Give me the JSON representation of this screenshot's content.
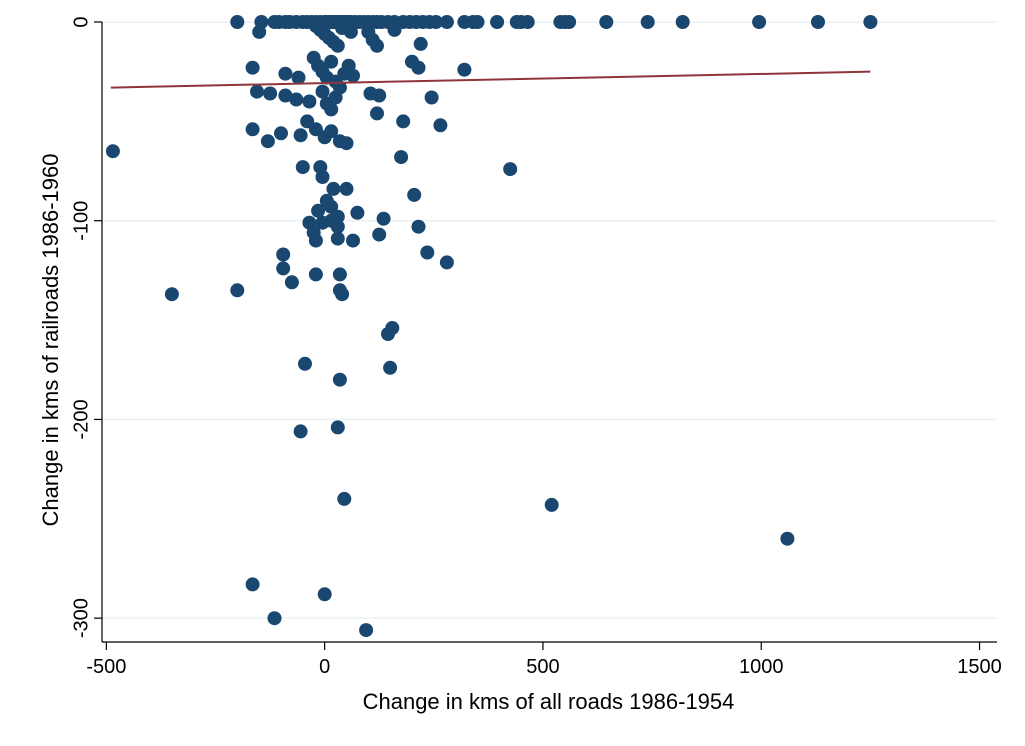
{
  "chart_data": {
    "type": "scatter",
    "xlabel": "Change in kms of all roads 1986-1954",
    "ylabel": "Change in kms of railroads 1986-1960",
    "xlim": [
      -510,
      1540
    ],
    "ylim": [
      -312,
      0
    ],
    "x_ticks": [
      {
        "value": -500,
        "label": "-500"
      },
      {
        "value": 0,
        "label": "0"
      },
      {
        "value": 500,
        "label": "500"
      },
      {
        "value": 1000,
        "label": "1000"
      },
      {
        "value": 1500,
        "label": "1500"
      }
    ],
    "y_ticks": [
      {
        "value": 0,
        "label": "0"
      },
      {
        "value": -100,
        "label": "-100"
      },
      {
        "value": -200,
        "label": "-200"
      },
      {
        "value": -300,
        "label": "-300"
      }
    ],
    "grid": "horizontal",
    "marker_color": "#1a476f",
    "fit_line": {
      "x": [
        -490,
        1250
      ],
      "y": [
        -33,
        -25
      ],
      "color": "#90353b"
    },
    "points": [
      [
        -200,
        0
      ],
      [
        -145,
        0
      ],
      [
        -115,
        0
      ],
      [
        -105,
        0
      ],
      [
        -90,
        0
      ],
      [
        -80,
        0
      ],
      [
        -65,
        0
      ],
      [
        -50,
        0
      ],
      [
        -40,
        0
      ],
      [
        -30,
        0
      ],
      [
        -20,
        0
      ],
      [
        -10,
        0
      ],
      [
        0,
        0
      ],
      [
        5,
        0
      ],
      [
        10,
        0
      ],
      [
        15,
        0
      ],
      [
        20,
        0
      ],
      [
        25,
        0
      ],
      [
        30,
        0
      ],
      [
        35,
        0
      ],
      [
        40,
        0
      ],
      [
        45,
        0
      ],
      [
        50,
        0
      ],
      [
        55,
        0
      ],
      [
        60,
        0
      ],
      [
        70,
        0
      ],
      [
        80,
        0
      ],
      [
        90,
        0
      ],
      [
        100,
        0
      ],
      [
        110,
        0
      ],
      [
        120,
        0
      ],
      [
        130,
        0
      ],
      [
        145,
        0
      ],
      [
        160,
        0
      ],
      [
        180,
        0
      ],
      [
        195,
        0
      ],
      [
        210,
        0
      ],
      [
        225,
        0
      ],
      [
        240,
        0
      ],
      [
        255,
        0
      ],
      [
        280,
        0
      ],
      [
        320,
        0
      ],
      [
        340,
        0
      ],
      [
        350,
        0
      ],
      [
        395,
        0
      ],
      [
        440,
        0
      ],
      [
        450,
        0
      ],
      [
        465,
        0
      ],
      [
        540,
        0
      ],
      [
        550,
        0
      ],
      [
        560,
        0
      ],
      [
        645,
        0
      ],
      [
        740,
        0
      ],
      [
        820,
        0
      ],
      [
        995,
        0
      ],
      [
        1130,
        0
      ],
      [
        1250,
        0
      ],
      [
        -150,
        -5
      ],
      [
        -20,
        -2
      ],
      [
        -10,
        -4
      ],
      [
        0,
        -6
      ],
      [
        10,
        -8
      ],
      [
        20,
        -10
      ],
      [
        30,
        -12
      ],
      [
        40,
        -3
      ],
      [
        60,
        -5
      ],
      [
        100,
        -5
      ],
      [
        110,
        -9
      ],
      [
        120,
        -12
      ],
      [
        160,
        -4
      ],
      [
        220,
        -11
      ],
      [
        -25,
        -18
      ],
      [
        -15,
        -22
      ],
      [
        -5,
        -25
      ],
      [
        5,
        -28
      ],
      [
        15,
        -20
      ],
      [
        25,
        -30
      ],
      [
        35,
        -33
      ],
      [
        45,
        -26
      ],
      [
        55,
        -22
      ],
      [
        65,
        -27
      ],
      [
        -90,
        -26
      ],
      [
        -60,
        -28
      ],
      [
        -165,
        -23
      ],
      [
        200,
        -20
      ],
      [
        215,
        -23
      ],
      [
        320,
        -24
      ],
      [
        -155,
        -35
      ],
      [
        -125,
        -36
      ],
      [
        -90,
        -37
      ],
      [
        -65,
        -39
      ],
      [
        -35,
        -40
      ],
      [
        -5,
        -35
      ],
      [
        5,
        -41
      ],
      [
        15,
        -44
      ],
      [
        25,
        -38
      ],
      [
        105,
        -36
      ],
      [
        125,
        -37
      ],
      [
        245,
        -38
      ],
      [
        -40,
        -50
      ],
      [
        -55,
        -57
      ],
      [
        -20,
        -54
      ],
      [
        0,
        -58
      ],
      [
        15,
        -55
      ],
      [
        35,
        -60
      ],
      [
        50,
        -61
      ],
      [
        -100,
        -56
      ],
      [
        -130,
        -60
      ],
      [
        -165,
        -54
      ],
      [
        -485,
        -65
      ],
      [
        120,
        -46
      ],
      [
        180,
        -50
      ],
      [
        265,
        -52
      ],
      [
        175,
        -68
      ],
      [
        -50,
        -73
      ],
      [
        -10,
        -73
      ],
      [
        -5,
        -78
      ],
      [
        20,
        -84
      ],
      [
        50,
        -84
      ],
      [
        5,
        -90
      ],
      [
        15,
        -93
      ],
      [
        -15,
        -95
      ],
      [
        30,
        -98
      ],
      [
        75,
        -96
      ],
      [
        135,
        -99
      ],
      [
        205,
        -87
      ],
      [
        425,
        -74
      ],
      [
        -35,
        -101
      ],
      [
        -5,
        -101
      ],
      [
        15,
        -100
      ],
      [
        30,
        -103
      ],
      [
        -25,
        -106
      ],
      [
        -20,
        -110
      ],
      [
        30,
        -109
      ],
      [
        65,
        -110
      ],
      [
        125,
        -107
      ],
      [
        215,
        -103
      ],
      [
        -95,
        -117
      ],
      [
        -95,
        -124
      ],
      [
        -75,
        -131
      ],
      [
        -20,
        -127
      ],
      [
        35,
        -127
      ],
      [
        35,
        -135
      ],
      [
        40,
        -137
      ],
      [
        235,
        -116
      ],
      [
        280,
        -121
      ],
      [
        -350,
        -137
      ],
      [
        -200,
        -135
      ],
      [
        145,
        -157
      ],
      [
        155,
        -154
      ],
      [
        -45,
        -172
      ],
      [
        35,
        -180
      ],
      [
        150,
        -174
      ],
      [
        -55,
        -206
      ],
      [
        30,
        -204
      ],
      [
        45,
        -240
      ],
      [
        520,
        -243
      ],
      [
        1060,
        -260
      ],
      [
        -165,
        -283
      ],
      [
        0,
        -288
      ],
      [
        -115,
        -300
      ],
      [
        95,
        -306
      ]
    ]
  }
}
